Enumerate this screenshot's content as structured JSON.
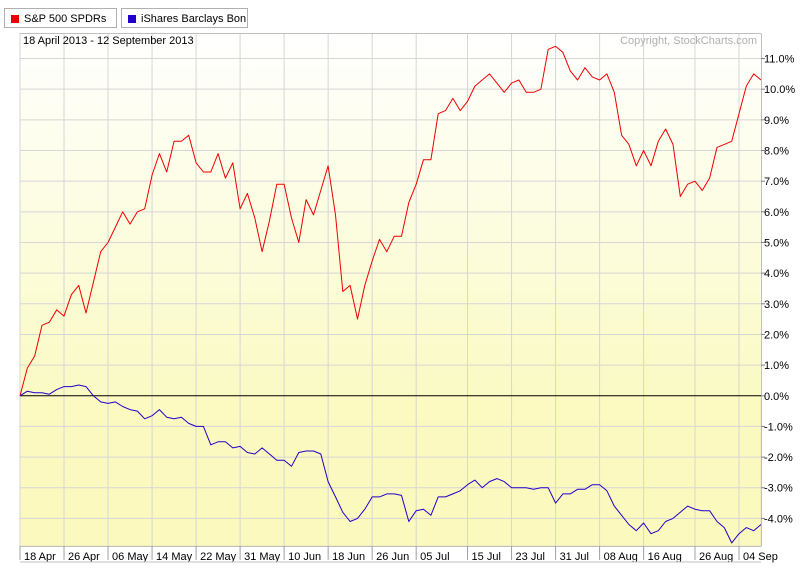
{
  "legend": {
    "items": [
      {
        "label": "S&P 500 SPDRs",
        "color": "#ee0000"
      },
      {
        "label": "iShares Barclays Bon",
        "color": "#2200cc"
      }
    ]
  },
  "chart_data": {
    "type": "line",
    "date_range": "18 April 2013 - 12 September 2013",
    "copyright": "Copyright, StockCharts.com",
    "y_unit": "percent change",
    "ylim": [
      -4.9,
      11.8
    ],
    "y_ticks": [
      -4,
      -3,
      -2,
      -1,
      0,
      1,
      2,
      3,
      4,
      5,
      6,
      7,
      8,
      9,
      10,
      11
    ],
    "y_tick_labels": [
      "-4.0%",
      "-3.0%",
      "-2.0%",
      "-1.0%",
      "0.0%",
      "1.0%",
      "2.0%",
      "3.0%",
      "4.0%",
      "5.0%",
      "6.0%",
      "7.0%",
      "8.0%",
      "9.0%",
      "10.0%",
      "11.0%"
    ],
    "x_tick_labels": [
      "18 Apr",
      "26 Apr",
      "06 May",
      "14 May",
      "22 May",
      "31 May",
      "10 Jun",
      "18 Jun",
      "26 Jun",
      "05 Jul",
      "15 Jul",
      "23 Jul",
      "31 Jul",
      "08 Aug",
      "16 Aug",
      "26 Aug",
      "04 Sep"
    ],
    "x_tick_index": [
      0,
      6,
      12,
      18,
      24,
      30,
      36,
      42,
      48,
      54,
      61,
      67,
      73,
      79,
      85,
      92,
      98
    ],
    "grid": true,
    "zero_line": true,
    "series": [
      {
        "name": "S&P 500 SPDRs",
        "color": "#ee0000",
        "values": [
          0.0,
          0.9,
          1.3,
          2.3,
          2.4,
          2.8,
          2.6,
          3.3,
          3.6,
          2.7,
          3.7,
          4.7,
          5.0,
          5.5,
          6.0,
          5.6,
          6.0,
          6.1,
          7.2,
          7.9,
          7.3,
          8.3,
          8.3,
          8.5,
          7.6,
          7.3,
          7.3,
          7.9,
          7.1,
          7.6,
          6.1,
          6.6,
          5.8,
          4.7,
          5.7,
          6.9,
          6.9,
          5.8,
          5.0,
          6.4,
          5.9,
          6.7,
          7.5,
          5.9,
          3.4,
          3.6,
          2.5,
          3.6,
          4.4,
          5.1,
          4.7,
          5.2,
          5.2,
          6.3,
          6.9,
          7.7,
          7.7,
          9.2,
          9.3,
          9.7,
          9.3,
          9.6,
          10.1,
          10.3,
          10.5,
          10.2,
          9.9,
          10.2,
          10.3,
          9.9,
          9.9,
          10.0,
          11.3,
          11.4,
          11.2,
          10.6,
          10.3,
          10.7,
          10.4,
          10.3,
          10.5,
          9.9,
          8.5,
          8.2,
          7.5,
          8.0,
          7.5,
          8.3,
          8.7,
          8.2,
          6.5,
          6.9,
          7.0,
          6.7,
          7.1,
          8.1,
          8.2,
          8.3,
          9.2,
          10.1,
          10.5,
          10.3
        ]
      },
      {
        "name": "iShares Barclays Bon",
        "color": "#2200cc",
        "values": [
          0.0,
          0.15,
          0.1,
          0.1,
          0.05,
          0.2,
          0.3,
          0.3,
          0.35,
          0.3,
          0.0,
          -0.2,
          -0.25,
          -0.2,
          -0.35,
          -0.45,
          -0.5,
          -0.75,
          -0.65,
          -0.45,
          -0.7,
          -0.75,
          -0.7,
          -0.9,
          -1.0,
          -1.0,
          -1.6,
          -1.5,
          -1.5,
          -1.7,
          -1.65,
          -1.85,
          -1.9,
          -1.7,
          -1.9,
          -2.1,
          -2.1,
          -2.3,
          -1.85,
          -1.8,
          -1.8,
          -1.9,
          -2.8,
          -3.3,
          -3.8,
          -4.1,
          -4.0,
          -3.7,
          -3.3,
          -3.3,
          -3.2,
          -3.2,
          -3.25,
          -4.1,
          -3.75,
          -3.7,
          -3.9,
          -3.3,
          -3.3,
          -3.2,
          -3.1,
          -2.9,
          -2.75,
          -3.0,
          -2.8,
          -2.7,
          -2.8,
          -3.0,
          -3.0,
          -3.0,
          -3.05,
          -3.0,
          -3.0,
          -3.5,
          -3.2,
          -3.2,
          -3.05,
          -3.05,
          -2.9,
          -2.9,
          -3.1,
          -3.6,
          -3.9,
          -4.2,
          -4.4,
          -4.15,
          -4.5,
          -4.4,
          -4.1,
          -4.0,
          -3.8,
          -3.6,
          -3.7,
          -3.75,
          -3.75,
          -4.1,
          -4.3,
          -4.8,
          -4.5,
          -4.3,
          -4.4,
          -4.2
        ]
      }
    ]
  }
}
